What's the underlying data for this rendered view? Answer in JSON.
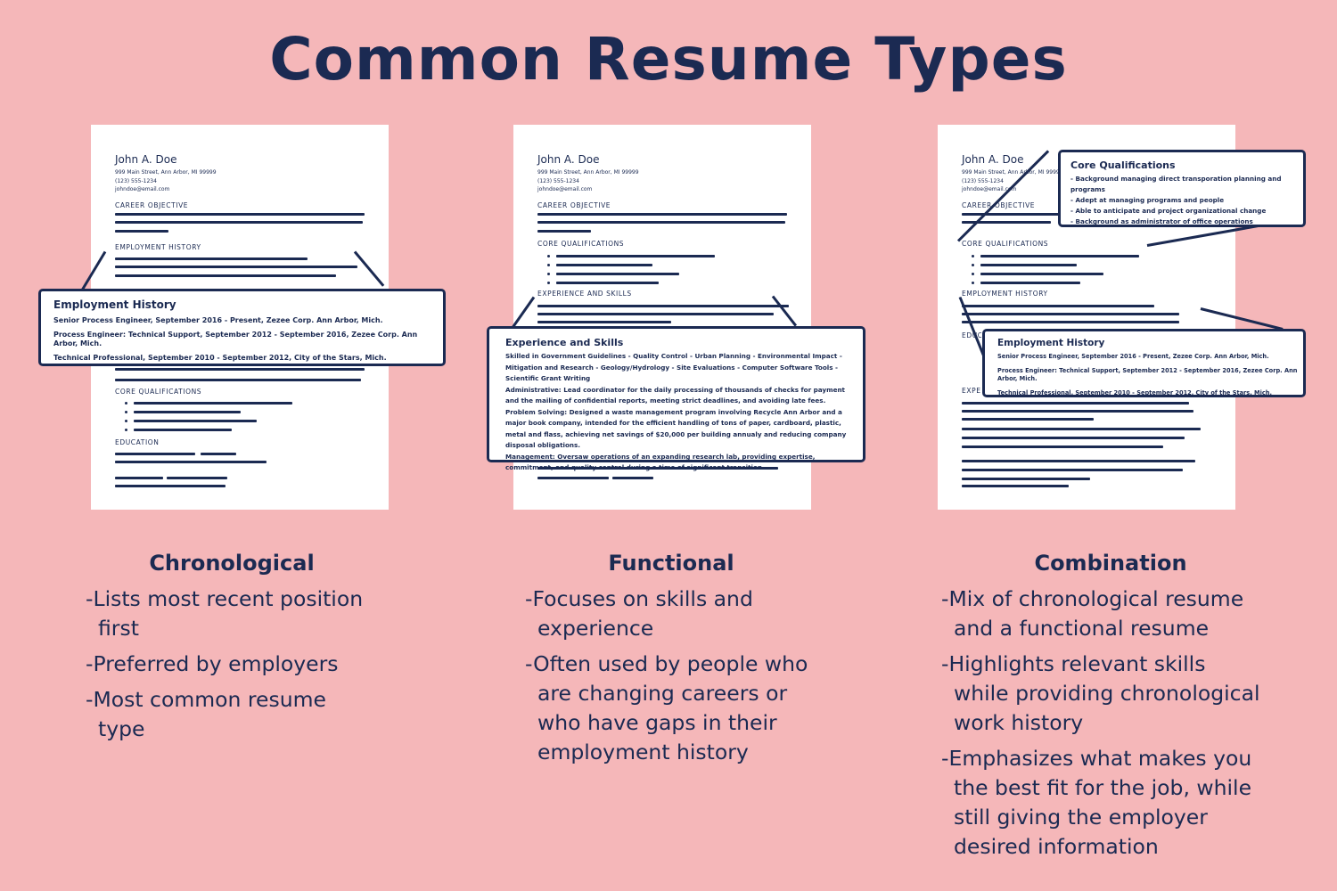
{
  "title": "Common Resume Types",
  "resume": {
    "name": "John A. Doe",
    "address": "999 Main Street, Ann Arbor, MI 99999",
    "phone": "(123) 555-1234",
    "email": "johndoe@email.com"
  },
  "chronological_sheet": {
    "sections": [
      "CAREER OBJECTIVE",
      "EMPLOYMENT HISTORY",
      "CORE QUALIFICATIONS",
      "EDUCATION"
    ],
    "callout": {
      "title": "Employment History",
      "rows": [
        "Senior Process Engineer, September 2016 - Present, Zezee Corp. Ann Arbor, Mich.",
        "Process Engineer: Technical Support, September 2012 - September 2016, Zezee Corp. Ann Arbor, Mich.",
        "Technical Professional, September 2010 - September 2012, City of the Stars, Mich."
      ]
    }
  },
  "functional_sheet": {
    "sections": [
      "CAREER OBJECTIVE",
      "CORE QUALIFICATIONS",
      "EXPERIENCE AND SKILLS"
    ],
    "callout": {
      "title": "Experience and Skills",
      "intro": "Skilled in Government Guidelines - Quality Control - Urban Planning - Environmental Impact - Mitigation and Research - Geology/Hydrology - Site Evaluations - Computer Software Tools - Scientific Grant Writing",
      "entries": [
        {
          "label": "Administrative:",
          "text": " Lead coordinator for the daily processing of thousands of checks for payment and the mailing of confidential reports, meeting strict deadlines, and avoiding late fees."
        },
        {
          "label": "Problem Solving:",
          "text": " Designed a waste management program involving Recycle Ann Arbor and a major book company, intended for the efficient handling of tons of paper, cardboard, plastic, metal and flass, achieving net savings of $20,000 per building annualy and reducing company disposal obligations."
        },
        {
          "label": "Management:",
          "text": " Oversaw operations of an expanding research lab, providing expertise, commitment, and quality control during a time of significant transition."
        }
      ]
    }
  },
  "combination_sheet": {
    "sections": [
      "CAREER OBJECTIVE",
      "CORE QUALIFICATIONS",
      "EMPLOYMENT HISTORY",
      "EDUCATION",
      "EXPERIENCE"
    ],
    "qual_callout": {
      "title": "Core Qualifications",
      "rows": [
        "- Background managing direct transporation planning and programs",
        "- Adept at managing programs and people",
        "- Able to anticipate and project organizational change",
        "- Background as administrator of office operations"
      ]
    },
    "emp_callout": {
      "title": "Employment History",
      "rows": [
        "Senior Process Engineer, September 2016 - Present, Zezee Corp. Ann Arbor, Mich.",
        "Process Engineer: Technical Support, September 2012 - September 2016, Zezee Corp. Ann Arbor, Mich.",
        "Technical Professional, September 2010 - September 2012, City of the Stars, Mich."
      ]
    }
  },
  "columns": [
    {
      "title": "Chronological",
      "bullets": [
        "-Lists most recent position\nfirst",
        "-Preferred by employers",
        "-Most common resume\ntype"
      ]
    },
    {
      "title": "Functional",
      "bullets": [
        "-Focuses on skills and\nexperience",
        "-Often used by people who\nare changing careers or\nwho have gaps in their\nemployment history"
      ]
    },
    {
      "title": "Combination",
      "bullets": [
        "-Mix of chronological resume\nand a functional resume",
        "-Highlights relevant skills\nwhile providing chronological\nwork history",
        "-Emphasizes what makes you\nthe best fit for the job, while\nstill giving the employer\ndesired information"
      ]
    }
  ],
  "colors": {
    "background": "#f5b7b9",
    "ink": "#1b2a52",
    "paper": "#ffffff"
  }
}
